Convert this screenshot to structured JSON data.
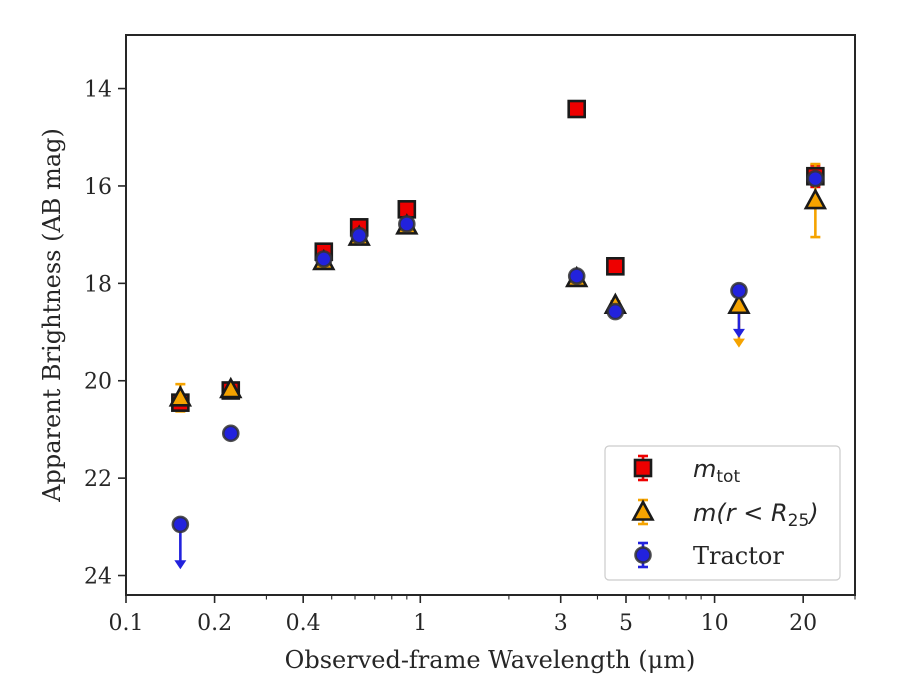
{
  "chart_data": {
    "type": "scatter",
    "xlabel": "Observed-frame Wavelength (μm)",
    "ylabel": "Apparent Brightness (AB mag)",
    "xscale": "log",
    "xlim": [
      0.1,
      30
    ],
    "ylim": [
      24.4,
      12.9
    ],
    "y_inverted": true,
    "xticks": [
      {
        "value": 0.1,
        "label": "0.1"
      },
      {
        "value": 0.2,
        "label": "0.2"
      },
      {
        "value": 0.4,
        "label": "0.4"
      },
      {
        "value": 1,
        "label": "1"
      },
      {
        "value": 3,
        "label": "3"
      },
      {
        "value": 5,
        "label": "5"
      },
      {
        "value": 10,
        "label": "10"
      },
      {
        "value": 20,
        "label": "20"
      }
    ],
    "yticks": [
      {
        "value": 14,
        "label": "14"
      },
      {
        "value": 16,
        "label": "16"
      },
      {
        "value": 18,
        "label": "18"
      },
      {
        "value": 20,
        "label": "20"
      },
      {
        "value": 22,
        "label": "22"
      },
      {
        "value": 24,
        "label": "24"
      }
    ],
    "legend_position": "lower-right",
    "grid": false,
    "series": [
      {
        "name": "m_tot",
        "legend_main": "m",
        "legend_sub": "tot",
        "marker": "square",
        "color": "#ee0000",
        "points": [
          {
            "x": 0.153,
            "y": 20.45,
            "err": 0.12
          },
          {
            "x": 0.227,
            "y": 20.2,
            "err": 0.1
          },
          {
            "x": 0.47,
            "y": 17.35,
            "err": 0.08
          },
          {
            "x": 0.62,
            "y": 16.85,
            "err": 0.08
          },
          {
            "x": 0.9,
            "y": 16.48,
            "err": 0.08
          },
          {
            "x": 3.4,
            "y": 14.42,
            "err": 0.05
          },
          {
            "x": 4.6,
            "y": 17.65,
            "err": 0.05
          },
          {
            "x": 22.0,
            "y": 15.8,
            "err": 0.22
          }
        ]
      },
      {
        "name": "m(r < R25)",
        "legend_main": "m(r < R",
        "legend_sub": "25",
        "legend_tail": ")",
        "marker": "triangle",
        "color": "#f5a300",
        "points": [
          {
            "x": 0.153,
            "y": 20.35,
            "err": 0.28
          },
          {
            "x": 0.227,
            "y": 20.18,
            "err": 0.1
          },
          {
            "x": 0.47,
            "y": 17.55,
            "err": 0.08
          },
          {
            "x": 0.62,
            "y": 17.05,
            "err": 0.08
          },
          {
            "x": 0.9,
            "y": 16.82,
            "err": 0.08
          },
          {
            "x": 3.4,
            "y": 17.9,
            "err": 0.05
          },
          {
            "x": 4.6,
            "y": 18.45,
            "err": 0.08
          },
          {
            "x": 12.1,
            "y": 18.45,
            "upper_limit_to": 19.3
          },
          {
            "x": 22.0,
            "y": 16.3,
            "err": 0.75
          }
        ]
      },
      {
        "name": "Tractor",
        "legend_main": "Tractor",
        "marker": "circle",
        "color": "#2222dd",
        "points": [
          {
            "x": 0.153,
            "y": 22.95,
            "upper_limit_to": 23.85
          },
          {
            "x": 0.227,
            "y": 21.08,
            "err": 0.08
          },
          {
            "x": 0.47,
            "y": 17.5,
            "err": 0.1
          },
          {
            "x": 0.62,
            "y": 17.02,
            "err": 0.1
          },
          {
            "x": 0.9,
            "y": 16.78,
            "err": 0.1
          },
          {
            "x": 3.4,
            "y": 17.85,
            "err": 0.08
          },
          {
            "x": 4.6,
            "y": 18.58,
            "err": 0.08
          },
          {
            "x": 12.1,
            "y": 18.15,
            "upper_limit_to": 19.1
          },
          {
            "x": 22.0,
            "y": 15.85,
            "err": 0.1
          }
        ]
      }
    ]
  }
}
